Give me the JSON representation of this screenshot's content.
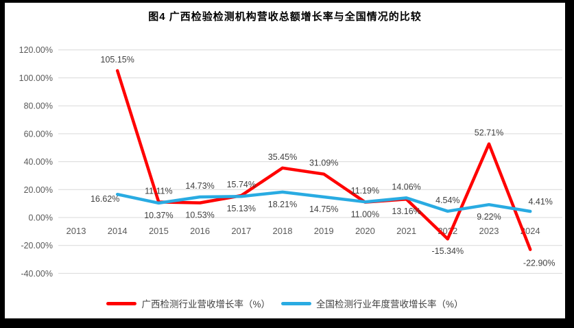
{
  "chart_data": {
    "type": "line",
    "title": "图4 广西检验检测机构营收总额增长率与全国情况的比较",
    "categories": [
      "2013",
      "2014",
      "2015",
      "2016",
      "2017",
      "2018",
      "2019",
      "2020",
      "2021",
      "2022",
      "2023",
      "2024"
    ],
    "series": [
      {
        "id": "guangxi",
        "name": "广西检测行业营收增长率（%）",
        "color": "#FF0000",
        "values": [
          null,
          105.15,
          11.11,
          10.53,
          15.74,
          35.45,
          31.09,
          11.0,
          13.16,
          -15.34,
          52.71,
          -22.9
        ],
        "label_pos": [
          null,
          "above",
          "above",
          "below",
          "above",
          "above",
          "above",
          "below",
          "below",
          "below",
          "above",
          "below-right"
        ]
      },
      {
        "id": "national",
        "name": "全国检测行业年度营收增长率（%）",
        "color": "#29ABE2",
        "values": [
          null,
          16.62,
          10.37,
          14.73,
          15.13,
          18.21,
          14.75,
          11.19,
          14.06,
          4.54,
          9.22,
          4.41
        ],
        "label_pos": [
          null,
          "left",
          "below",
          "above",
          "below",
          "below",
          "below",
          "above",
          "above",
          "above",
          "below",
          "above-right"
        ]
      }
    ],
    "y_axis": {
      "min": -40,
      "max": 120,
      "step": 20,
      "tick_values": [
        120,
        100,
        80,
        60,
        40,
        20,
        0,
        -20,
        -40
      ],
      "tick_labels": [
        "120.00%",
        "100.00%",
        "80.00%",
        "60.00%",
        "40.00%",
        "20.00%",
        "0.00%",
        "-20.00%",
        "-40.00%"
      ]
    },
    "grid": true,
    "gridline_color": "#D9D9D9",
    "legend_position": "bottom"
  }
}
